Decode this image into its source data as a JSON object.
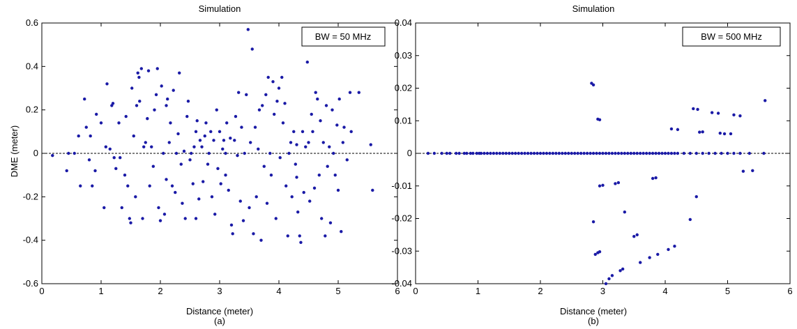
{
  "chart_data": [
    {
      "type": "scatter",
      "title": "Simulation",
      "xlabel": "Distance (meter)",
      "ylabel": "DME (meter)",
      "caption": "(a)",
      "legend": "BW = 50 MHz",
      "legend_position": "top-right",
      "xlim": [
        0,
        6
      ],
      "ylim": [
        -0.6,
        0.6
      ],
      "xticks": [
        "0",
        "1",
        "2",
        "3",
        "4",
        "5",
        "6"
      ],
      "yticks": [
        "-0.6",
        "-0.4",
        "-0.2",
        "0",
        "0.2",
        "0.4",
        "0.6"
      ],
      "reference_line_y": 0,
      "grid": false,
      "point_color": "#1a1aa6",
      "points": [
        [
          0.18,
          -0.01
        ],
        [
          0.42,
          -0.08
        ],
        [
          0.45,
          0.0
        ],
        [
          0.55,
          0.0
        ],
        [
          0.62,
          0.08
        ],
        [
          0.65,
          -0.15
        ],
        [
          0.72,
          0.25
        ],
        [
          0.75,
          0.12
        ],
        [
          0.8,
          -0.03
        ],
        [
          0.82,
          0.08
        ],
        [
          0.85,
          -0.15
        ],
        [
          0.9,
          -0.08
        ],
        [
          0.92,
          0.18
        ],
        [
          1.0,
          0.14
        ],
        [
          1.05,
          -0.25
        ],
        [
          1.08,
          0.03
        ],
        [
          1.1,
          0.32
        ],
        [
          1.15,
          0.02
        ],
        [
          1.18,
          0.22
        ],
        [
          1.2,
          0.23
        ],
        [
          1.22,
          -0.02
        ],
        [
          1.25,
          -0.07
        ],
        [
          1.3,
          0.14
        ],
        [
          1.32,
          -0.02
        ],
        [
          1.35,
          -0.25
        ],
        [
          1.4,
          -0.1
        ],
        [
          1.42,
          0.17
        ],
        [
          1.45,
          -0.15
        ],
        [
          1.48,
          -0.3
        ],
        [
          1.5,
          -0.32
        ],
        [
          1.52,
          0.3
        ],
        [
          1.55,
          0.08
        ],
        [
          1.58,
          -0.2
        ],
        [
          1.6,
          0.22
        ],
        [
          1.62,
          0.37
        ],
        [
          1.64,
          0.35
        ],
        [
          1.65,
          0.24
        ],
        [
          1.68,
          0.39
        ],
        [
          1.7,
          -0.3
        ],
        [
          1.72,
          0.03
        ],
        [
          1.75,
          0.05
        ],
        [
          1.78,
          0.16
        ],
        [
          1.8,
          0.38
        ],
        [
          1.82,
          -0.15
        ],
        [
          1.85,
          0.03
        ],
        [
          1.88,
          -0.06
        ],
        [
          1.9,
          0.2
        ],
        [
          1.93,
          0.27
        ],
        [
          1.95,
          0.39
        ],
        [
          1.97,
          -0.25
        ],
        [
          2.0,
          -0.31
        ],
        [
          2.02,
          0.31
        ],
        [
          2.05,
          0.0
        ],
        [
          2.07,
          -0.28
        ],
        [
          2.1,
          0.22
        ],
        [
          2.12,
          0.25
        ],
        [
          2.15,
          0.05
        ],
        [
          2.17,
          0.14
        ],
        [
          2.2,
          -0.15
        ],
        [
          2.22,
          0.29
        ],
        [
          2.25,
          -0.18
        ],
        [
          2.27,
          0.0
        ],
        [
          2.3,
          0.09
        ],
        [
          2.32,
          0.37
        ],
        [
          2.35,
          -0.05
        ],
        [
          2.37,
          -0.23
        ],
        [
          2.4,
          0.01
        ],
        [
          2.42,
          -0.3
        ],
        [
          2.45,
          0.17
        ],
        [
          2.47,
          0.24
        ],
        [
          2.5,
          -0.03
        ],
        [
          2.52,
          0.0
        ],
        [
          2.55,
          -0.14
        ],
        [
          2.57,
          0.03
        ],
        [
          2.6,
          -0.3
        ],
        [
          2.62,
          0.15
        ],
        [
          2.65,
          -0.21
        ],
        [
          2.67,
          0.06
        ],
        [
          2.7,
          0.03
        ],
        [
          2.72,
          -0.13
        ],
        [
          2.75,
          0.08
        ],
        [
          2.77,
          0.14
        ],
        [
          2.8,
          -0.05
        ],
        [
          2.82,
          0.0
        ],
        [
          2.85,
          0.1
        ],
        [
          2.87,
          -0.2
        ],
        [
          2.9,
          0.06
        ],
        [
          2.92,
          -0.28
        ],
        [
          2.95,
          0.2
        ],
        [
          2.97,
          -0.07
        ],
        [
          3.0,
          0.1
        ],
        [
          3.02,
          -0.14
        ],
        [
          3.05,
          0.02
        ],
        [
          3.07,
          0.06
        ],
        [
          3.1,
          -0.1
        ],
        [
          3.12,
          0.14
        ],
        [
          3.15,
          -0.17
        ],
        [
          3.18,
          0.07
        ],
        [
          3.2,
          -0.33
        ],
        [
          3.22,
          -0.37
        ],
        [
          3.25,
          0.06
        ],
        [
          3.27,
          0.17
        ],
        [
          3.3,
          -0.01
        ],
        [
          3.32,
          0.28
        ],
        [
          3.35,
          -0.22
        ],
        [
          3.37,
          0.12
        ],
        [
          3.4,
          -0.31
        ],
        [
          3.42,
          0.0
        ],
        [
          3.45,
          0.27
        ],
        [
          3.48,
          0.57
        ],
        [
          3.5,
          -0.25
        ],
        [
          3.52,
          0.05
        ],
        [
          3.55,
          0.48
        ],
        [
          3.57,
          -0.37
        ],
        [
          3.6,
          0.12
        ],
        [
          3.62,
          -0.2
        ],
        [
          3.65,
          0.02
        ],
        [
          3.67,
          0.2
        ],
        [
          3.7,
          -0.4
        ],
        [
          3.72,
          0.22
        ],
        [
          3.75,
          -0.06
        ],
        [
          3.78,
          0.27
        ],
        [
          3.8,
          -0.23
        ],
        [
          3.82,
          0.35
        ],
        [
          3.85,
          0.0
        ],
        [
          3.87,
          -0.1
        ],
        [
          3.9,
          0.33
        ],
        [
          3.92,
          0.18
        ],
        [
          3.95,
          -0.3
        ],
        [
          3.97,
          0.24
        ],
        [
          4.0,
          0.3
        ],
        [
          4.02,
          -0.02
        ],
        [
          4.05,
          0.35
        ],
        [
          4.07,
          0.14
        ],
        [
          4.1,
          0.23
        ],
        [
          4.12,
          -0.15
        ],
        [
          4.15,
          -0.38
        ],
        [
          4.17,
          0.0
        ],
        [
          4.2,
          0.05
        ],
        [
          4.22,
          -0.2
        ],
        [
          4.25,
          0.1
        ],
        [
          4.28,
          -0.05
        ],
        [
          4.3,
          -0.11
        ],
        [
          4.32,
          -0.27
        ],
        [
          4.35,
          -0.38
        ],
        [
          4.37,
          -0.41
        ],
        [
          4.4,
          0.1
        ],
        [
          4.42,
          -0.18
        ],
        [
          4.45,
          0.03
        ],
        [
          4.48,
          0.42
        ],
        [
          4.5,
          0.05
        ],
        [
          4.52,
          -0.22
        ],
        [
          4.55,
          0.18
        ],
        [
          4.57,
          0.1
        ],
        [
          4.6,
          -0.16
        ],
        [
          4.62,
          0.28
        ],
        [
          4.65,
          0.25
        ],
        [
          4.68,
          -0.1
        ],
        [
          4.7,
          0.15
        ],
        [
          4.72,
          -0.3
        ],
        [
          4.75,
          0.05
        ],
        [
          4.78,
          -0.38
        ],
        [
          4.8,
          0.22
        ],
        [
          4.82,
          -0.06
        ],
        [
          4.85,
          0.03
        ],
        [
          4.87,
          -0.32
        ],
        [
          4.9,
          0.2
        ],
        [
          4.92,
          0.0
        ],
        [
          4.95,
          -0.1
        ],
        [
          4.98,
          0.13
        ],
        [
          5.0,
          -0.17
        ],
        [
          5.02,
          0.25
        ],
        [
          5.05,
          -0.36
        ],
        [
          5.08,
          0.05
        ],
        [
          5.1,
          0.12
        ],
        [
          5.15,
          -0.03
        ],
        [
          5.2,
          0.28
        ],
        [
          5.22,
          0.1
        ],
        [
          5.35,
          0.28
        ],
        [
          5.55,
          0.04
        ],
        [
          5.58,
          -0.17
        ],
        [
          2.1,
          -0.12
        ],
        [
          2.6,
          0.1
        ],
        [
          3.1,
          0.0
        ],
        [
          4.3,
          0.04
        ]
      ]
    },
    {
      "type": "scatter",
      "title": "Simulation",
      "xlabel": "Distance (meter)",
      "ylabel": "",
      "caption": "(b)",
      "legend": "BW = 500 MHz",
      "legend_position": "top-right",
      "xlim": [
        0,
        6
      ],
      "ylim": [
        -0.04,
        0.04
      ],
      "xticks": [
        "0",
        "1",
        "2",
        "3",
        "4",
        "5",
        "6"
      ],
      "yticks": [
        "-0.04",
        "-0.03",
        "-0.02",
        "-0.01",
        "0",
        "0.01",
        "0.02",
        "0.03",
        "0.04"
      ],
      "reference_line_y": 0,
      "grid": false,
      "point_color": "#1a1aa6",
      "points": [
        [
          0.2,
          0
        ],
        [
          0.3,
          0
        ],
        [
          0.42,
          0
        ],
        [
          0.5,
          0
        ],
        [
          0.55,
          0
        ],
        [
          0.65,
          0
        ],
        [
          0.7,
          0
        ],
        [
          0.78,
          0
        ],
        [
          0.82,
          0
        ],
        [
          0.88,
          0
        ],
        [
          0.92,
          0
        ],
        [
          0.98,
          0
        ],
        [
          1.02,
          0
        ],
        [
          1.05,
          0
        ],
        [
          1.1,
          0
        ],
        [
          1.15,
          0
        ],
        [
          1.2,
          0
        ],
        [
          1.25,
          0
        ],
        [
          1.3,
          0
        ],
        [
          1.35,
          0
        ],
        [
          1.4,
          0
        ],
        [
          1.45,
          0
        ],
        [
          1.5,
          0
        ],
        [
          1.55,
          0
        ],
        [
          1.6,
          0
        ],
        [
          1.65,
          0
        ],
        [
          1.7,
          0
        ],
        [
          1.75,
          0
        ],
        [
          1.8,
          0
        ],
        [
          1.85,
          0
        ],
        [
          1.9,
          0
        ],
        [
          1.95,
          0
        ],
        [
          2.0,
          0
        ],
        [
          2.05,
          0
        ],
        [
          2.1,
          0
        ],
        [
          2.15,
          0
        ],
        [
          2.2,
          0
        ],
        [
          2.25,
          0
        ],
        [
          2.3,
          0
        ],
        [
          2.35,
          0
        ],
        [
          2.4,
          0
        ],
        [
          2.45,
          0
        ],
        [
          2.5,
          0
        ],
        [
          2.55,
          0
        ],
        [
          2.6,
          0
        ],
        [
          2.65,
          0
        ],
        [
          2.7,
          0
        ],
        [
          2.75,
          0
        ],
        [
          2.8,
          0
        ],
        [
          2.85,
          0
        ],
        [
          2.9,
          0
        ],
        [
          2.95,
          0
        ],
        [
          3.0,
          0
        ],
        [
          3.05,
          0
        ],
        [
          3.1,
          0
        ],
        [
          3.15,
          0
        ],
        [
          3.2,
          0
        ],
        [
          3.25,
          0
        ],
        [
          3.3,
          0
        ],
        [
          3.35,
          0
        ],
        [
          3.4,
          0
        ],
        [
          3.45,
          0
        ],
        [
          3.5,
          0
        ],
        [
          3.55,
          0
        ],
        [
          3.6,
          0
        ],
        [
          3.65,
          0
        ],
        [
          3.7,
          0
        ],
        [
          3.75,
          0
        ],
        [
          3.8,
          0
        ],
        [
          3.85,
          0
        ],
        [
          3.9,
          0
        ],
        [
          3.95,
          0
        ],
        [
          4.0,
          0
        ],
        [
          4.05,
          0
        ],
        [
          4.1,
          0
        ],
        [
          4.15,
          0
        ],
        [
          4.2,
          0
        ],
        [
          4.3,
          0
        ],
        [
          4.4,
          0
        ],
        [
          4.5,
          0
        ],
        [
          4.6,
          0
        ],
        [
          4.7,
          0
        ],
        [
          4.8,
          0
        ],
        [
          4.9,
          0
        ],
        [
          5.0,
          0
        ],
        [
          5.1,
          0
        ],
        [
          5.2,
          0
        ],
        [
          5.35,
          0
        ],
        [
          5.58,
          0
        ],
        [
          2.82,
          0.0215
        ],
        [
          2.85,
          0.021
        ],
        [
          2.92,
          0.0105
        ],
        [
          2.95,
          0.0103
        ],
        [
          2.85,
          -0.021
        ],
        [
          2.88,
          -0.031
        ],
        [
          2.92,
          -0.0305
        ],
        [
          2.95,
          -0.0302
        ],
        [
          2.95,
          -0.01
        ],
        [
          3.0,
          -0.0098
        ],
        [
          3.05,
          -0.04
        ],
        [
          3.1,
          -0.0385
        ],
        [
          3.15,
          -0.0375
        ],
        [
          3.2,
          -0.0093
        ],
        [
          3.25,
          -0.009
        ],
        [
          3.28,
          -0.036
        ],
        [
          3.32,
          -0.0355
        ],
        [
          3.35,
          -0.018
        ],
        [
          3.5,
          -0.0255
        ],
        [
          3.55,
          -0.025
        ],
        [
          3.6,
          -0.0335
        ],
        [
          3.75,
          -0.032
        ],
        [
          3.8,
          -0.0077
        ],
        [
          3.85,
          -0.0075
        ],
        [
          3.88,
          -0.031
        ],
        [
          4.05,
          -0.0295
        ],
        [
          4.1,
          0.0075
        ],
        [
          4.15,
          -0.0285
        ],
        [
          4.2,
          0.0073
        ],
        [
          4.4,
          -0.0203
        ],
        [
          4.45,
          0.0137
        ],
        [
          4.5,
          -0.0133
        ],
        [
          4.52,
          0.0135
        ],
        [
          4.55,
          0.0065
        ],
        [
          4.6,
          0.0066
        ],
        [
          4.75,
          0.0125
        ],
        [
          4.85,
          0.0123
        ],
        [
          4.88,
          0.0062
        ],
        [
          4.95,
          0.006
        ],
        [
          5.05,
          0.006
        ],
        [
          5.1,
          0.0118
        ],
        [
          5.2,
          0.0115
        ],
        [
          5.25,
          -0.0055
        ],
        [
          5.4,
          -0.0053
        ],
        [
          5.6,
          0.0162
        ]
      ]
    }
  ]
}
